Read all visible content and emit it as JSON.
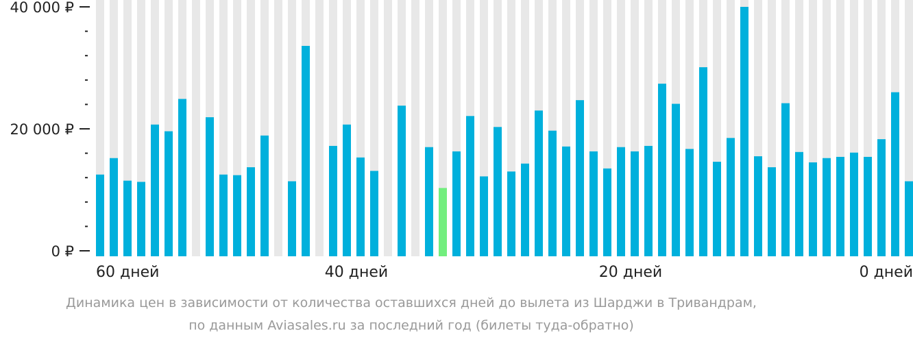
{
  "chart_data": {
    "type": "bar",
    "ylim": [
      0,
      40000
    ],
    "y_ticks": [
      {
        "value": 0,
        "label": "0 ₽"
      },
      {
        "value": 20000,
        "label": "20 000 ₽"
      },
      {
        "value": 40000,
        "label": "40 000 ₽"
      }
    ],
    "x_tick_labels": [
      {
        "index": 0,
        "label": "60 дней"
      },
      {
        "index": 19,
        "label": "40 дней"
      },
      {
        "index": 39,
        "label": "20 дней"
      },
      {
        "index": 59,
        "label": "0 дней"
      }
    ],
    "values": [
      12500,
      15200,
      11500,
      11300,
      20700,
      19600,
      24900,
      null,
      21900,
      12500,
      12400,
      13700,
      18900,
      null,
      11400,
      33600,
      null,
      17200,
      20700,
      15300,
      13100,
      null,
      23800,
      null,
      17000,
      10300,
      16300,
      22100,
      12200,
      20300,
      13000,
      14300,
      23000,
      19700,
      17100,
      24700,
      16300,
      13500,
      17000,
      16300,
      17200,
      27400,
      24100,
      16700,
      30100,
      14600,
      18500,
      40000,
      15500,
      13700,
      24200,
      16200,
      14500,
      15200,
      15400,
      16100,
      15400,
      18300,
      26000,
      11400
    ],
    "highlight_index": 25,
    "colors": {
      "bar": "#00b0dc",
      "highlight": "#72ee7e",
      "background_bar": "#e8e8e8"
    }
  },
  "caption": {
    "line1": "Динамика цен в зависимости от количества оставшихся дней до вылета из Шарджи в Тривандрам,",
    "line2": "по данным Aviasales.ru за последний год (билеты туда-обратно)"
  }
}
